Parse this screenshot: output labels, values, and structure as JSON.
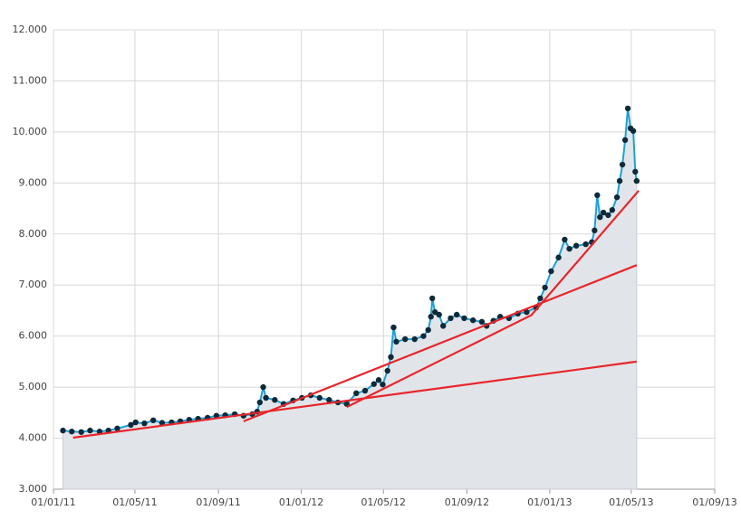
{
  "chart_data": {
    "type": "line",
    "xlim": [
      "2011-01-01",
      "2013-09-01"
    ],
    "ylim": [
      3000,
      12000
    ],
    "grid": true,
    "xticks": [
      {
        "value": "2011-01-01",
        "label": "01/01/11"
      },
      {
        "value": "2011-05-01",
        "label": "01/05/11"
      },
      {
        "value": "2011-09-01",
        "label": "01/09/11"
      },
      {
        "value": "2012-01-01",
        "label": "01/01/12"
      },
      {
        "value": "2012-05-01",
        "label": "01/05/12"
      },
      {
        "value": "2012-09-01",
        "label": "01/09/12"
      },
      {
        "value": "2013-01-01",
        "label": "01/01/13"
      },
      {
        "value": "2013-05-01",
        "label": "01/05/13"
      },
      {
        "value": "2013-09-01",
        "label": "01/09/13"
      }
    ],
    "yticks": [
      {
        "value": 3000,
        "label": "3.000"
      },
      {
        "value": 4000,
        "label": "4.000"
      },
      {
        "value": 5000,
        "label": "5.000"
      },
      {
        "value": 6000,
        "label": "6.000"
      },
      {
        "value": 7000,
        "label": "7.000"
      },
      {
        "value": 8000,
        "label": "8.000"
      },
      {
        "value": 9000,
        "label": "9.000"
      },
      {
        "value": 10000,
        "label": "10.000"
      },
      {
        "value": 11000,
        "label": "11.000"
      },
      {
        "value": 12000,
        "label": "12.000"
      }
    ],
    "series": [
      {
        "color": "#1ea0d8",
        "marker_color": "#0e2a3a",
        "area_color": "#e1e5e9",
        "area": true,
        "markers": true,
        "x": [
          "2011-01-15",
          "2011-01-28",
          "2011-02-11",
          "2011-02-24",
          "2011-03-10",
          "2011-03-23",
          "2011-04-05",
          "2011-04-25",
          "2011-05-02",
          "2011-05-15",
          "2011-05-28",
          "2011-06-10",
          "2011-06-24",
          "2011-07-07",
          "2011-07-20",
          "2011-08-02",
          "2011-08-16",
          "2011-08-29",
          "2011-09-11",
          "2011-09-25",
          "2011-10-08",
          "2011-10-21",
          "2011-10-28",
          "2011-11-01",
          "2011-11-06",
          "2011-11-10",
          "2011-11-23",
          "2011-12-06",
          "2011-12-20",
          "2012-01-02",
          "2012-01-15",
          "2012-01-28",
          "2012-02-11",
          "2012-02-24",
          "2012-03-08",
          "2012-03-22",
          "2012-04-04",
          "2012-04-17",
          "2012-04-24",
          "2012-04-30",
          "2012-05-07",
          "2012-05-12",
          "2012-05-16",
          "2012-05-20",
          "2012-06-02",
          "2012-06-16",
          "2012-06-29",
          "2012-07-06",
          "2012-07-10",
          "2012-07-12",
          "2012-07-16",
          "2012-07-22",
          "2012-07-28",
          "2012-08-08",
          "2012-08-17",
          "2012-08-28",
          "2012-09-10",
          "2012-09-23",
          "2012-09-30",
          "2012-10-10",
          "2012-10-20",
          "2012-11-02",
          "2012-11-15",
          "2012-11-28",
          "2012-12-12",
          "2012-12-18",
          "2012-12-25",
          "2013-01-03",
          "2013-01-14",
          "2013-01-23",
          "2013-01-30",
          "2013-02-09",
          "2013-02-23",
          "2013-03-04",
          "2013-03-08",
          "2013-03-12",
          "2013-03-16",
          "2013-03-21",
          "2013-03-28",
          "2013-04-03",
          "2013-04-10",
          "2013-04-14",
          "2013-04-18",
          "2013-04-22",
          "2013-04-26",
          "2013-04-30",
          "2013-05-04",
          "2013-05-07",
          "2013-05-09"
        ],
        "values": [
          4150,
          4130,
          4120,
          4150,
          4130,
          4150,
          4190,
          4260,
          4310,
          4290,
          4350,
          4300,
          4310,
          4330,
          4360,
          4380,
          4400,
          4440,
          4450,
          4470,
          4440,
          4470,
          4520,
          4700,
          5000,
          4790,
          4750,
          4670,
          4740,
          4790,
          4840,
          4790,
          4750,
          4700,
          4670,
          4880,
          4930,
          5060,
          5140,
          5050,
          5320,
          5590,
          6170,
          5890,
          5940,
          5940,
          6000,
          6120,
          6380,
          6740,
          6470,
          6420,
          6200,
          6350,
          6420,
          6350,
          6310,
          6280,
          6200,
          6300,
          6380,
          6350,
          6440,
          6470,
          6560,
          6740,
          6950,
          7270,
          7540,
          7890,
          7710,
          7770,
          7800,
          7840,
          8070,
          8760,
          8330,
          8420,
          8370,
          8470,
          8720,
          9040,
          9360,
          9840,
          10460,
          10070,
          10020,
          9220,
          9040
        ]
      },
      {
        "color": "#e8262b",
        "x": [
          "2011-01-30",
          "2013-05-09"
        ],
        "values": [
          4010,
          5500
        ]
      },
      {
        "color": "#e8262b",
        "x": [
          "2011-10-08",
          "2013-05-09"
        ],
        "values": [
          4330,
          7390
        ]
      },
      {
        "color": "#e8262b",
        "x": [
          "2012-03-08",
          "2012-12-05",
          "2013-05-12"
        ],
        "values": [
          4610,
          6410,
          8850
        ]
      }
    ]
  }
}
